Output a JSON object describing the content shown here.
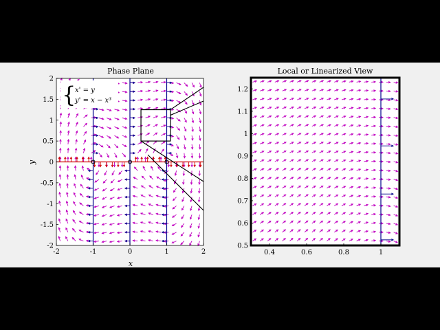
{
  "chart_data": [
    {
      "type": "quiver",
      "title": "Phase Plane",
      "xlabel": "x",
      "ylabel": "y",
      "xlim": [
        -2,
        2
      ],
      "ylim": [
        -2,
        2
      ],
      "xticks": [
        "-2",
        "-1",
        "0",
        "1",
        "2"
      ],
      "yticks": [
        "-2",
        "-1.5",
        "-1",
        "-0.5",
        "0",
        "0.5",
        "1",
        "1.5",
        "2"
      ],
      "equations": [
        "x' = y",
        "y' = x − x³"
      ],
      "equilibria": [
        [
          -1,
          0
        ],
        [
          0,
          0
        ],
        [
          1,
          0
        ]
      ],
      "nullclines": {
        "x_nullcline": "y = 0",
        "y_nullcline": "x = -1, 0, 1"
      },
      "zoom_box": {
        "x": [
          0.3,
          1.1
        ],
        "y": [
          0.5,
          1.25
        ]
      },
      "colors": {
        "field": "#c000c0",
        "x_nullcline": "#d00000",
        "y_nullcline": "#00008b",
        "axes": "#000000"
      }
    },
    {
      "type": "quiver",
      "title": "Local or Linearized View",
      "xlim": [
        0.3,
        1.1
      ],
      "ylim": [
        0.5,
        1.25
      ],
      "xticks": [
        "0.4",
        "0.6",
        "0.8",
        "1"
      ],
      "yticks": [
        "0.5",
        "0.6",
        "0.7",
        "0.8",
        "0.9",
        "1",
        "1.1",
        "1.2"
      ],
      "nullclines": {
        "y_nullcline": "x = 1"
      },
      "colors": {
        "field": "#c000c0",
        "y_nullcline": "#00008b"
      }
    }
  ]
}
